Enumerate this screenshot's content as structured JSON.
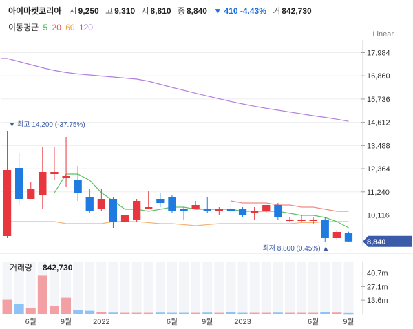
{
  "header": {
    "name": "아이마켓코리아",
    "open_label": "시",
    "open": "9,250",
    "high_label": "고",
    "high": "9,310",
    "low_label": "저",
    "low": "8,810",
    "close_label": "종",
    "close": "8,840",
    "change": "▼ 410 -4.43%",
    "volume_label": "거",
    "volume": "842,730"
  },
  "ma_legend": {
    "title": "이동평균",
    "items": [
      {
        "label": "5",
        "color": "#3cb54a"
      },
      {
        "label": "20",
        "color": "#e8554e"
      },
      {
        "label": "60",
        "color": "#f0a040"
      },
      {
        "label": "120",
        "color": "#9b5de5"
      }
    ]
  },
  "scale_mode": "Linear",
  "colors": {
    "up": "#e8363f",
    "down": "#1f7be0",
    "price_tag_bg": "#3b5aa8",
    "vol_up": "#f2a0a4",
    "vol_down": "#8ec3f5"
  },
  "chart_data": {
    "type": "candlestick",
    "y_ticks": [
      17984,
      16860,
      15736,
      14612,
      13488,
      12364,
      11240,
      10116
    ],
    "ylim": [
      8800,
      18600
    ],
    "last_price_label": "8,840",
    "annotations": {
      "high": "▼ 최고 14,200 (-37.75%)",
      "low": "최저 8,800 (0.45%) ▲"
    },
    "x_labels": [
      "6월",
      "9월",
      "2022",
      "6월",
      "9월",
      "2023",
      "6월",
      "9월"
    ],
    "x_label_slots": [
      2,
      5,
      8,
      14,
      17,
      20,
      26,
      29
    ],
    "candles": [
      {
        "o": 9100,
        "h": 14200,
        "l": 9000,
        "c": 12300
      },
      {
        "o": 12400,
        "h": 13100,
        "l": 10600,
        "c": 10900
      },
      {
        "o": 10900,
        "h": 11700,
        "l": 10900,
        "c": 11400
      },
      {
        "o": 11100,
        "h": 13400,
        "l": 10400,
        "c": 12200
      },
      {
        "o": 12100,
        "h": 13400,
        "l": 11800,
        "c": 12200
      },
      {
        "o": 12000,
        "h": 13900,
        "l": 11500,
        "c": 12000
      },
      {
        "o": 11800,
        "h": 12500,
        "l": 10800,
        "c": 11200
      },
      {
        "o": 11000,
        "h": 11400,
        "l": 10200,
        "c": 10300
      },
      {
        "o": 10400,
        "h": 11400,
        "l": 10300,
        "c": 10900
      },
      {
        "o": 10900,
        "h": 11000,
        "l": 9500,
        "c": 9800
      },
      {
        "o": 9800,
        "h": 10100,
        "l": 9700,
        "c": 10100
      },
      {
        "o": 9900,
        "h": 10900,
        "l": 9800,
        "c": 10800
      },
      {
        "o": 10400,
        "h": 11300,
        "l": 10400,
        "c": 10500
      },
      {
        "o": 10900,
        "h": 11200,
        "l": 10500,
        "c": 10700
      },
      {
        "o": 11000,
        "h": 11100,
        "l": 10200,
        "c": 10300
      },
      {
        "o": 10400,
        "h": 10500,
        "l": 9900,
        "c": 10300
      },
      {
        "o": 10400,
        "h": 10800,
        "l": 10400,
        "c": 10600
      },
      {
        "o": 10400,
        "h": 11000,
        "l": 10200,
        "c": 10300
      },
      {
        "o": 10300,
        "h": 10500,
        "l": 10100,
        "c": 10400
      },
      {
        "o": 10400,
        "h": 10800,
        "l": 10200,
        "c": 10300
      },
      {
        "o": 10400,
        "h": 10500,
        "l": 10000,
        "c": 10100
      },
      {
        "o": 10200,
        "h": 10500,
        "l": 9900,
        "c": 10300
      },
      {
        "o": 10300,
        "h": 10600,
        "l": 10200,
        "c": 10600
      },
      {
        "o": 10600,
        "h": 10700,
        "l": 9900,
        "c": 10000
      },
      {
        "o": 9900,
        "h": 10000,
        "l": 9800,
        "c": 9900
      },
      {
        "o": 9900,
        "h": 10100,
        "l": 9800,
        "c": 9900
      },
      {
        "o": 9900,
        "h": 10000,
        "l": 9700,
        "c": 9900
      },
      {
        "o": 9900,
        "h": 10000,
        "l": 8800,
        "c": 9000
      },
      {
        "o": 9000,
        "h": 9400,
        "l": 8900,
        "c": 9300
      },
      {
        "o": 9250,
        "h": 9310,
        "l": 8810,
        "c": 8840
      }
    ],
    "ma": {
      "ma5": [
        null,
        null,
        null,
        null,
        11200,
        12100,
        12100,
        11800,
        11200,
        10800,
        10400,
        10400,
        10300,
        10400,
        10500,
        10500,
        10400,
        10400,
        10400,
        10400,
        10300,
        10300,
        10300,
        10300,
        10200,
        10100,
        10100,
        10000,
        9800,
        9500
      ],
      "ma20": [
        null,
        null,
        null,
        null,
        null,
        null,
        null,
        null,
        null,
        null,
        null,
        null,
        null,
        null,
        null,
        null,
        null,
        null,
        null,
        10800,
        10700,
        10700,
        10700,
        10600,
        10600,
        10500,
        10500,
        10400,
        10300,
        10300
      ],
      "ma60": [
        9800,
        9800,
        9800,
        9800,
        9800,
        9700,
        9700,
        9700,
        9700,
        9800,
        9800,
        9800,
        9750,
        9700,
        9700,
        9650,
        9600,
        9650,
        9700,
        9700,
        9700,
        9700,
        9700,
        9700,
        9700,
        9750,
        9750,
        9800,
        9800,
        9800
      ],
      "ma120": [
        17700,
        17550,
        17400,
        17250,
        17120,
        17020,
        16950,
        16900,
        16850,
        16800,
        16750,
        16700,
        16600,
        16450,
        16300,
        16160,
        16020,
        15880,
        15750,
        15620,
        15500,
        15390,
        15290,
        15200,
        15110,
        15020,
        14930,
        14850,
        14760,
        14660
      ]
    },
    "volume": {
      "label": "거래량",
      "value_label": "842,730",
      "y_ticks": [
        "40.7m",
        "27.1m",
        "13.6m"
      ],
      "y_tick_values": [
        40.7,
        27.1,
        13.6
      ],
      "ylim": [
        0,
        52
      ],
      "values": [
        14,
        10,
        6,
        38,
        8,
        16,
        4,
        3,
        1.5,
        1.2,
        1,
        1,
        1,
        1.2,
        1,
        1,
        1,
        1.2,
        1,
        1.5,
        1,
        1,
        1,
        1.2,
        1,
        1,
        1,
        1.5,
        1.2,
        0.8
      ]
    }
  }
}
